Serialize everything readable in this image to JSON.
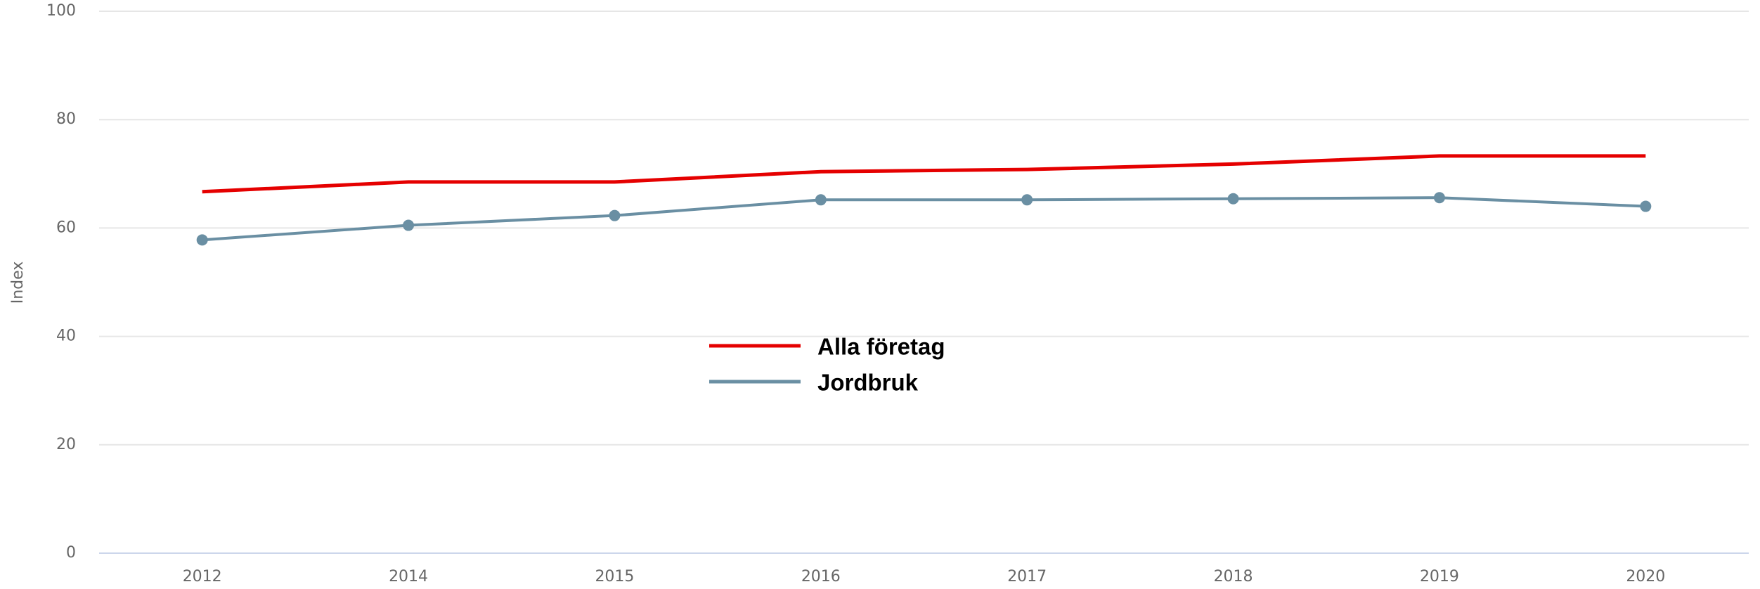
{
  "chart_data": {
    "type": "line",
    "y_label": "Index",
    "categories": [
      "2012",
      "2014",
      "2015",
      "2016",
      "2017",
      "2018",
      "2019",
      "2020"
    ],
    "series": [
      {
        "name": "Alla företag",
        "color": "#e50000",
        "values": [
          66.7,
          68.5,
          68.5,
          70.4,
          70.8,
          71.8,
          73.3,
          73.3
        ]
      },
      {
        "name": "Jordbruk",
        "color": "#6a8fa3",
        "values": [
          57.8,
          60.5,
          62.3,
          65.2,
          65.2,
          65.4,
          65.6,
          64.0
        ]
      }
    ],
    "ylim": [
      0,
      100
    ],
    "yticks": [
      0,
      20,
      40,
      60,
      80,
      100
    ],
    "grid": true,
    "legend": "center"
  }
}
